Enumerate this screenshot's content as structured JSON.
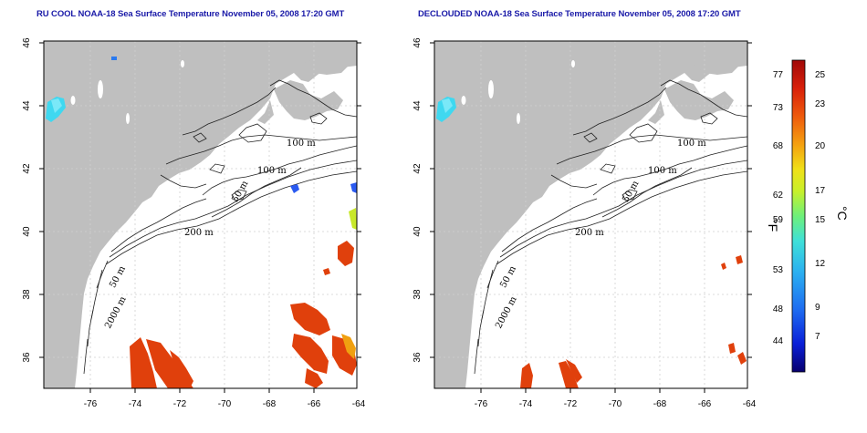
{
  "panels": [
    {
      "id": "left",
      "title": "RU COOL NOAA-18 Sea Surface Temperature November 05, 2008 17:20 GMT",
      "x_ticks": [
        "-76",
        "-74",
        "-72",
        "-70",
        "-68",
        "-66",
        "-64"
      ],
      "y_ticks": [
        "46",
        "44",
        "42",
        "40",
        "38",
        "36"
      ],
      "contour_labels": [
        "100 m",
        "100 m",
        "50 m",
        "200 m",
        "50 m",
        "2000 m"
      ]
    },
    {
      "id": "right",
      "title": "DECLOUDED NOAA-18 Sea Surface Temperature November 05, 2008 17:20 GMT",
      "x_ticks": [
        "-76",
        "-74",
        "-72",
        "-70",
        "-68",
        "-66",
        "-64"
      ],
      "y_ticks": [
        "46",
        "44",
        "42",
        "40",
        "38",
        "36"
      ],
      "contour_labels": [
        "100 m",
        "100 m",
        "50 m",
        "200 m",
        "50 m",
        "2000 m"
      ]
    }
  ],
  "colorbar": {
    "fahrenheit_labels": [
      "77",
      "73",
      "68",
      "62",
      "59",
      "53",
      "48",
      "44"
    ],
    "celsius_labels": [
      "25",
      "23",
      "20",
      "17",
      "15",
      "12",
      "9",
      "7"
    ],
    "f_unit": "°F",
    "c_unit": "°C",
    "colors": [
      "#08006e",
      "#0a1fd8",
      "#1e6cf0",
      "#2bb0f0",
      "#3fe0d8",
      "#6ef07a",
      "#c8f02a",
      "#f0e018",
      "#f4a010",
      "#ee5a0c",
      "#d8200a",
      "#a00808"
    ]
  },
  "colors": {
    "land": "#bfbfbf",
    "ocean": "#ffffff",
    "title": "#1a1aa8",
    "warm_sst": "#e0400c",
    "cool_sst": "#3fd8f0"
  }
}
